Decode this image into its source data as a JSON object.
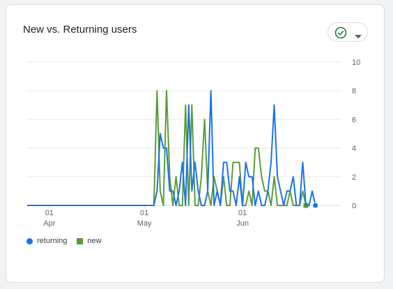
{
  "card": {
    "title": "New vs. Returning users",
    "menu_icon": "check-circle-icon",
    "menu_caret": "caret-down-icon"
  },
  "colors": {
    "returning": "#1a73e8",
    "new": "#5b9b3a",
    "grid": "#e8eaed",
    "axis_text": "#5f6368"
  },
  "chart_data": {
    "type": "line",
    "x_start": "2024-03-25",
    "x_end": "2024-07-02",
    "x_ticks": [
      {
        "date": "2024-04-01",
        "day": "01",
        "month": "Apr"
      },
      {
        "date": "2024-05-01",
        "day": "01",
        "month": "May"
      },
      {
        "date": "2024-06-01",
        "day": "01",
        "month": "Jun"
      }
    ],
    "ylim": [
      0,
      10
    ],
    "y_ticks": [
      0,
      2,
      4,
      6,
      8,
      10
    ],
    "grid": true,
    "legend_position": "bottom-left",
    "series": [
      {
        "name": "returning",
        "marker": "circle",
        "points": [
          [
            "2024-03-25",
            0
          ],
          [
            "2024-05-04",
            0
          ],
          [
            "2024-05-05",
            1
          ],
          [
            "2024-05-06",
            5
          ],
          [
            "2024-05-07",
            4
          ],
          [
            "2024-05-08",
            4
          ],
          [
            "2024-05-09",
            1
          ],
          [
            "2024-05-10",
            1
          ],
          [
            "2024-05-11",
            0
          ],
          [
            "2024-05-12",
            1
          ],
          [
            "2024-05-13",
            3
          ],
          [
            "2024-05-14",
            0
          ],
          [
            "2024-05-15",
            7
          ],
          [
            "2024-05-16",
            1
          ],
          [
            "2024-05-17",
            3
          ],
          [
            "2024-05-18",
            1
          ],
          [
            "2024-05-19",
            0
          ],
          [
            "2024-05-20",
            0
          ],
          [
            "2024-05-21",
            1
          ],
          [
            "2024-05-22",
            8
          ],
          [
            "2024-05-23",
            0
          ],
          [
            "2024-05-24",
            1
          ],
          [
            "2024-05-25",
            0
          ],
          [
            "2024-05-26",
            3
          ],
          [
            "2024-05-27",
            3
          ],
          [
            "2024-05-28",
            1
          ],
          [
            "2024-05-29",
            1
          ],
          [
            "2024-05-30",
            0
          ],
          [
            "2024-05-31",
            2
          ],
          [
            "2024-06-01",
            0
          ],
          [
            "2024-06-02",
            3
          ],
          [
            "2024-06-03",
            2
          ],
          [
            "2024-06-04",
            2
          ],
          [
            "2024-06-05",
            0
          ],
          [
            "2024-06-06",
            1
          ],
          [
            "2024-06-07",
            0
          ],
          [
            "2024-06-08",
            0
          ],
          [
            "2024-06-09",
            1
          ],
          [
            "2024-06-10",
            3
          ],
          [
            "2024-06-11",
            7
          ],
          [
            "2024-06-12",
            2
          ],
          [
            "2024-06-13",
            1
          ],
          [
            "2024-06-14",
            0
          ],
          [
            "2024-06-15",
            1
          ],
          [
            "2024-06-16",
            1
          ],
          [
            "2024-06-17",
            2
          ],
          [
            "2024-06-18",
            0
          ],
          [
            "2024-06-19",
            0
          ],
          [
            "2024-06-20",
            3
          ],
          [
            "2024-06-21",
            0
          ],
          [
            "2024-06-22",
            0
          ],
          [
            "2024-06-23",
            1
          ],
          [
            "2024-06-24",
            0
          ]
        ]
      },
      {
        "name": "new",
        "marker": "square",
        "points": [
          [
            "2024-03-25",
            0
          ],
          [
            "2024-05-04",
            0
          ],
          [
            "2024-05-05",
            8
          ],
          [
            "2024-05-06",
            1
          ],
          [
            "2024-05-07",
            0
          ],
          [
            "2024-05-08",
            8
          ],
          [
            "2024-05-09",
            2
          ],
          [
            "2024-05-10",
            0
          ],
          [
            "2024-05-11",
            2
          ],
          [
            "2024-05-12",
            0
          ],
          [
            "2024-05-13",
            0
          ],
          [
            "2024-05-14",
            7
          ],
          [
            "2024-05-15",
            0
          ],
          [
            "2024-05-16",
            7
          ],
          [
            "2024-05-17",
            0
          ],
          [
            "2024-05-18",
            0
          ],
          [
            "2024-05-19",
            2
          ],
          [
            "2024-05-20",
            6
          ],
          [
            "2024-05-21",
            1
          ],
          [
            "2024-05-22",
            0
          ],
          [
            "2024-05-23",
            2
          ],
          [
            "2024-05-24",
            1
          ],
          [
            "2024-05-25",
            0
          ],
          [
            "2024-05-26",
            2
          ],
          [
            "2024-05-27",
            0
          ],
          [
            "2024-05-28",
            0
          ],
          [
            "2024-05-29",
            3
          ],
          [
            "2024-05-30",
            3
          ],
          [
            "2024-05-31",
            3
          ],
          [
            "2024-06-01",
            0
          ],
          [
            "2024-06-02",
            0
          ],
          [
            "2024-06-03",
            1
          ],
          [
            "2024-06-04",
            0
          ],
          [
            "2024-06-05",
            4
          ],
          [
            "2024-06-06",
            4
          ],
          [
            "2024-06-07",
            2
          ],
          [
            "2024-06-08",
            1
          ],
          [
            "2024-06-09",
            1
          ],
          [
            "2024-06-10",
            0
          ],
          [
            "2024-06-11",
            2
          ],
          [
            "2024-06-12",
            0
          ],
          [
            "2024-06-13",
            0
          ],
          [
            "2024-06-14",
            0
          ],
          [
            "2024-06-15",
            0
          ],
          [
            "2024-06-16",
            1
          ],
          [
            "2024-06-17",
            0
          ],
          [
            "2024-06-18",
            0
          ],
          [
            "2024-06-19",
            0
          ],
          [
            "2024-06-20",
            1
          ],
          [
            "2024-06-21",
            0
          ]
        ]
      }
    ]
  }
}
